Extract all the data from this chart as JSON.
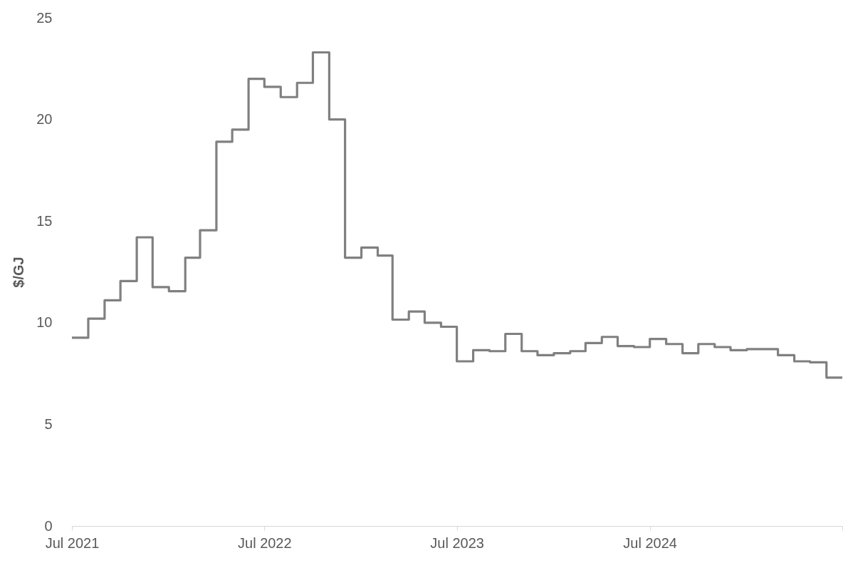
{
  "chart_data": {
    "type": "step",
    "ylabel": "$/GJ",
    "x": [
      "2021-07",
      "2021-08",
      "2021-09",
      "2021-10",
      "2021-11",
      "2021-12",
      "2022-01",
      "2022-02",
      "2022-03",
      "2022-04",
      "2022-05",
      "2022-06",
      "2022-07",
      "2022-08",
      "2022-09",
      "2022-10",
      "2022-11",
      "2022-12",
      "2023-01",
      "2023-02",
      "2023-03",
      "2023-04",
      "2023-05",
      "2023-06",
      "2023-07",
      "2023-08",
      "2023-09",
      "2023-10",
      "2023-11",
      "2023-12",
      "2024-01",
      "2024-02",
      "2024-03",
      "2024-04",
      "2024-05",
      "2024-06",
      "2024-07",
      "2024-08",
      "2024-09",
      "2024-10",
      "2024-11",
      "2024-12",
      "2025-01",
      "2025-02",
      "2025-03",
      "2025-04",
      "2025-05",
      "2025-06",
      "2025-07"
    ],
    "series": [
      {
        "color": "#808080",
        "values": [
          9.26,
          10.2,
          11.1,
          12.05,
          14.2,
          11.75,
          11.55,
          13.2,
          14.55,
          18.9,
          19.5,
          22.0,
          21.6,
          21.1,
          21.8,
          23.3,
          20.0,
          13.2,
          13.7,
          13.3,
          10.15,
          10.55,
          10.0,
          9.8,
          8.1,
          8.65,
          8.6,
          9.45,
          8.6,
          8.4,
          8.5,
          8.6,
          9.0,
          9.3,
          8.85,
          8.8,
          9.2,
          8.95,
          8.5,
          8.95,
          8.8,
          8.65,
          8.7,
          8.7,
          8.4,
          8.1,
          8.05,
          7.3,
          7.3
        ]
      }
    ],
    "xlim": [
      "2021-07",
      "2025-07"
    ],
    "xticks": [
      {
        "value": "2021-07",
        "label": "Jul 2021"
      },
      {
        "value": "2022-07",
        "label": "Jul 2022"
      },
      {
        "value": "2023-07",
        "label": "Jul 2023"
      },
      {
        "value": "2024-07",
        "label": "Jul 2024"
      },
      {
        "value": "2025-07",
        "label": null
      }
    ],
    "ylim": [
      0,
      25
    ],
    "yticks": [
      0,
      5,
      10,
      15,
      20,
      25
    ],
    "grid": false,
    "line_style": "solid"
  }
}
